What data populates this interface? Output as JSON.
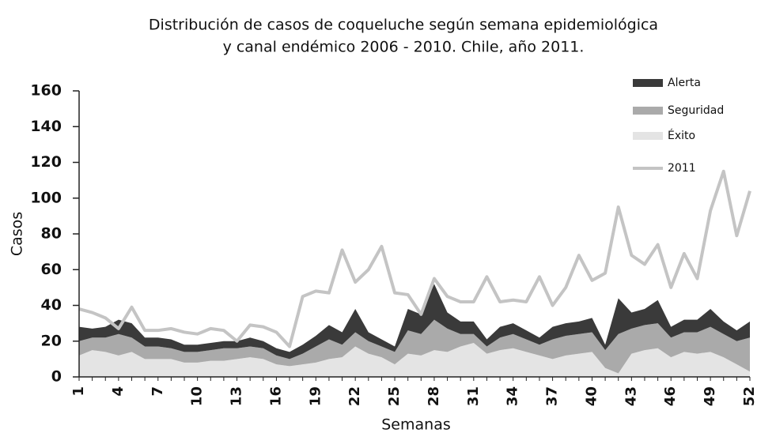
{
  "chart_data": {
    "type": "stacked-area-line",
    "title": [
      "Distribución de casos de coqueluche según semana epidemiológica",
      "y canal endémico 2006 - 2010. Chile, año 2011."
    ],
    "x_label": "Semanas",
    "y_label": "Casos",
    "categories": [
      "1",
      null,
      null,
      "4",
      null,
      null,
      "7",
      null,
      null,
      "10",
      null,
      null,
      "13",
      null,
      null,
      "16",
      null,
      null,
      "19",
      null,
      null,
      "22",
      null,
      null,
      "25",
      null,
      null,
      "28",
      null,
      null,
      "31",
      null,
      null,
      "34",
      null,
      null,
      "37",
      null,
      null,
      "40",
      null,
      null,
      "43",
      null,
      null,
      "46",
      null,
      null,
      "49",
      null,
      null,
      "52"
    ],
    "series": [
      {
        "name": "Alerta",
        "color": "#3a3a3a",
        "kind": "area",
        "values": [
          8,
          5,
          6,
          8,
          8,
          5,
          5,
          5,
          4,
          4,
          4,
          4,
          4,
          5,
          4,
          4,
          4,
          5,
          6,
          8,
          7,
          13,
          5,
          4,
          3,
          12,
          11,
          20,
          9,
          7,
          7,
          4,
          6,
          6,
          5,
          4,
          7,
          7,
          7,
          8,
          3,
          20,
          9,
          9,
          13,
          6,
          7,
          7,
          10,
          7,
          6,
          9
        ]
      },
      {
        "name": "Seguridad",
        "color": "#aaaaaa",
        "kind": "area",
        "values": [
          8,
          7,
          8,
          12,
          8,
          7,
          7,
          6,
          6,
          6,
          6,
          7,
          6,
          6,
          6,
          5,
          4,
          6,
          9,
          11,
          7,
          8,
          7,
          6,
          7,
          13,
          12,
          17,
          13,
          7,
          5,
          4,
          7,
          8,
          7,
          6,
          11,
          11,
          11,
          11,
          10,
          22,
          14,
          14,
          14,
          11,
          11,
          12,
          14,
          13,
          13,
          19
        ]
      },
      {
        "name": "Éxito",
        "color": "#e4e4e4",
        "kind": "area",
        "values": [
          12,
          15,
          14,
          12,
          14,
          10,
          10,
          10,
          8,
          8,
          9,
          9,
          10,
          11,
          10,
          7,
          6,
          7,
          8,
          10,
          11,
          17,
          13,
          11,
          7,
          13,
          12,
          15,
          14,
          17,
          19,
          13,
          15,
          16,
          14,
          12,
          10,
          12,
          13,
          14,
          5,
          2,
          13,
          15,
          16,
          11,
          14,
          13,
          14,
          11,
          7,
          3
        ]
      },
      {
        "name": "2011",
        "color": "#c4c4c4",
        "kind": "line",
        "values": [
          38,
          36,
          33,
          27,
          39,
          26,
          26,
          27,
          25,
          24,
          27,
          26,
          20,
          29,
          28,
          25,
          17,
          45,
          48,
          47,
          71,
          53,
          60,
          73,
          47,
          46,
          35,
          55,
          45,
          42,
          42,
          56,
          42,
          43,
          42,
          56,
          40,
          50,
          68,
          54,
          58,
          95,
          68,
          63,
          74,
          50,
          69,
          55,
          93,
          115,
          79,
          104
        ]
      }
    ],
    "ylim": [
      0,
      160
    ],
    "yticks": [
      0,
      20,
      40,
      60,
      80,
      100,
      120,
      140,
      160
    ]
  }
}
